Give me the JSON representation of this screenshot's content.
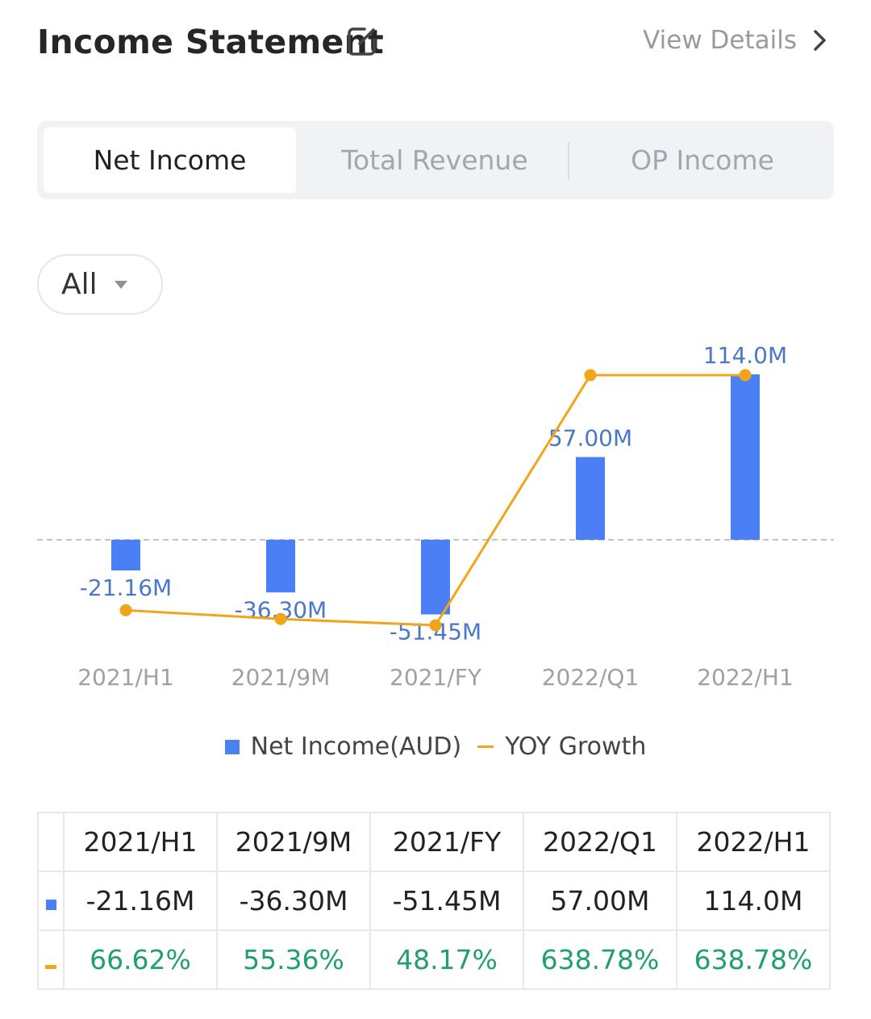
{
  "header": {
    "title": "Income Statement",
    "view_details": "View Details"
  },
  "tabs": [
    {
      "label": "Net Income",
      "active": true
    },
    {
      "label": "Total Revenue",
      "active": false
    },
    {
      "label": "OP Income",
      "active": false
    }
  ],
  "filter": {
    "label": "All"
  },
  "colors": {
    "bar": "#4a7ff5",
    "line": "#f0a51b",
    "growth_text": "#22a06b",
    "accent_text": "#4a78c8"
  },
  "chart_data": {
    "type": "bar",
    "categories": [
      "2021/H1",
      "2021/9M",
      "2021/FY",
      "2022/Q1",
      "2022/H1"
    ],
    "series": [
      {
        "name": "Net Income(AUD)",
        "type": "bar",
        "values": [
          -21.16,
          -36.3,
          -51.45,
          57.0,
          114.0
        ],
        "labels": [
          "-21.16M",
          "-36.30M",
          "-51.45M",
          "57.00M",
          "114.0M"
        ]
      },
      {
        "name": "YOY Growth",
        "type": "line",
        "values": [
          66.62,
          55.36,
          48.17,
          638.78,
          638.78
        ]
      }
    ],
    "legend_position": "bottom",
    "zero_line": "dashed"
  },
  "legend": {
    "bar_label": "Net Income(AUD)",
    "line_label": "YOY Growth"
  },
  "table": {
    "headers": [
      "2021/H1",
      "2021/9M",
      "2021/FY",
      "2022/Q1",
      "2022/H1"
    ],
    "income": [
      "-21.16M",
      "-36.30M",
      "-51.45M",
      "57.00M",
      "114.0M"
    ],
    "growth": [
      "66.62%",
      "55.36%",
      "48.17%",
      "638.78%",
      "638.78%"
    ]
  }
}
